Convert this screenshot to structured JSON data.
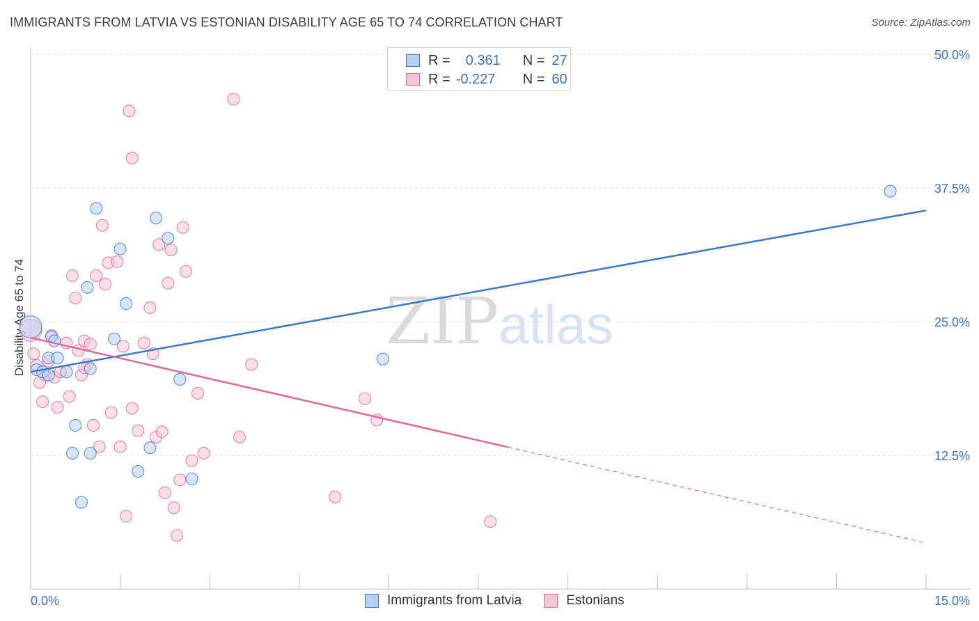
{
  "header": {
    "title": "IMMIGRANTS FROM LATVIA VS ESTONIAN DISABILITY AGE 65 TO 74 CORRELATION CHART",
    "source": "Source: ZipAtlas.com"
  },
  "watermark": {
    "zip": "ZIP",
    "atlas": "atlas"
  },
  "legend": {
    "rows": [
      {
        "r_label": "R =",
        "r_value": "0.361",
        "n_label": "N =",
        "n_value": "27"
      },
      {
        "r_label": "R =",
        "r_value": "-0.227",
        "n_label": "N =",
        "n_value": "60"
      }
    ]
  },
  "chart_data": {
    "type": "scatter",
    "title": "IMMIGRANTS FROM LATVIA VS ESTONIAN DISABILITY AGE 65 TO 74 CORRELATION CHART",
    "xlabel": "",
    "ylabel": "Disability Age 65 to 74",
    "xlim": [
      0,
      15
    ],
    "ylim": [
      0,
      50
    ],
    "x_tick_labels": [
      "0.0%",
      "15.0%"
    ],
    "y_tick_values": [
      12.5,
      25.0,
      37.5,
      50.0
    ],
    "y_tick_labels": [
      "12.5%",
      "25.0%",
      "37.5%",
      "50.0%"
    ],
    "grid": true,
    "colors": {
      "latvia": "#3a78d0",
      "estonians": "#e06a96",
      "latvia_fill": "#b8d0f2",
      "estonians_fill": "#f6c4d4"
    },
    "series": [
      {
        "name": "Immigrants from Latvia",
        "r": 0.361,
        "n": 27,
        "trend": {
          "x0": 0.0,
          "y0": 20.3,
          "x1": 15.0,
          "y1": 35.4,
          "dash_from": null
        },
        "points": [
          [
            0.0,
            24.5
          ],
          [
            0.1,
            20.5
          ],
          [
            0.2,
            20.3
          ],
          [
            0.3,
            21.6
          ],
          [
            0.35,
            23.6
          ],
          [
            0.4,
            23.2
          ],
          [
            0.45,
            21.6
          ],
          [
            0.6,
            20.3
          ],
          [
            0.7,
            12.7
          ],
          [
            0.75,
            15.3
          ],
          [
            0.85,
            8.1
          ],
          [
            0.95,
            28.2
          ],
          [
            1.0,
            20.6
          ],
          [
            1.1,
            35.6
          ],
          [
            1.4,
            23.4
          ],
          [
            1.5,
            31.8
          ],
          [
            1.6,
            26.7
          ],
          [
            1.8,
            11.0
          ],
          [
            2.0,
            13.2
          ],
          [
            2.1,
            34.7
          ],
          [
            2.3,
            32.8
          ],
          [
            2.5,
            19.6
          ],
          [
            2.7,
            10.3
          ],
          [
            5.9,
            21.5
          ],
          [
            14.4,
            37.2
          ],
          [
            1.0,
            12.7
          ],
          [
            0.3,
            20.0
          ]
        ]
      },
      {
        "name": "Estonians",
        "r": -0.227,
        "n": 60,
        "trend": {
          "x0": 0.0,
          "y0": 23.5,
          "x1": 15.0,
          "y1": 4.3,
          "dash_from": 8.0
        },
        "points": [
          [
            0.0,
            24.2
          ],
          [
            0.05,
            22.0
          ],
          [
            0.1,
            20.9
          ],
          [
            0.15,
            19.3
          ],
          [
            0.2,
            17.5
          ],
          [
            0.25,
            20.0
          ],
          [
            0.3,
            21.3
          ],
          [
            0.35,
            23.7
          ],
          [
            0.4,
            19.8
          ],
          [
            0.45,
            17.0
          ],
          [
            0.5,
            20.3
          ],
          [
            0.6,
            23.0
          ],
          [
            0.65,
            18.0
          ],
          [
            0.7,
            29.3
          ],
          [
            0.75,
            27.2
          ],
          [
            0.8,
            22.3
          ],
          [
            0.85,
            20.0
          ],
          [
            0.9,
            23.2
          ],
          [
            0.95,
            21.0
          ],
          [
            1.0,
            22.9
          ],
          [
            1.05,
            15.3
          ],
          [
            1.1,
            29.3
          ],
          [
            1.15,
            13.3
          ],
          [
            1.2,
            34.0
          ],
          [
            1.25,
            28.5
          ],
          [
            1.3,
            30.5
          ],
          [
            1.35,
            16.5
          ],
          [
            1.45,
            30.6
          ],
          [
            1.5,
            13.3
          ],
          [
            1.55,
            22.7
          ],
          [
            1.6,
            6.8
          ],
          [
            1.65,
            44.7
          ],
          [
            1.7,
            40.3
          ],
          [
            1.8,
            14.8
          ],
          [
            1.9,
            23.0
          ],
          [
            2.0,
            26.3
          ],
          [
            2.05,
            22.0
          ],
          [
            2.1,
            14.2
          ],
          [
            2.15,
            32.2
          ],
          [
            2.2,
            14.7
          ],
          [
            2.25,
            9.0
          ],
          [
            2.3,
            28.6
          ],
          [
            2.35,
            31.7
          ],
          [
            2.4,
            7.6
          ],
          [
            2.45,
            5.0
          ],
          [
            2.5,
            10.2
          ],
          [
            2.55,
            33.8
          ],
          [
            2.6,
            29.7
          ],
          [
            2.7,
            12.0
          ],
          [
            2.8,
            18.3
          ],
          [
            2.9,
            12.7
          ],
          [
            3.4,
            45.8
          ],
          [
            3.5,
            14.2
          ],
          [
            3.7,
            21.0
          ],
          [
            5.6,
            17.8
          ],
          [
            5.8,
            15.8
          ],
          [
            7.7,
            6.3
          ],
          [
            5.1,
            8.6
          ],
          [
            1.7,
            16.9
          ],
          [
            0.9,
            20.7
          ]
        ]
      }
    ]
  }
}
